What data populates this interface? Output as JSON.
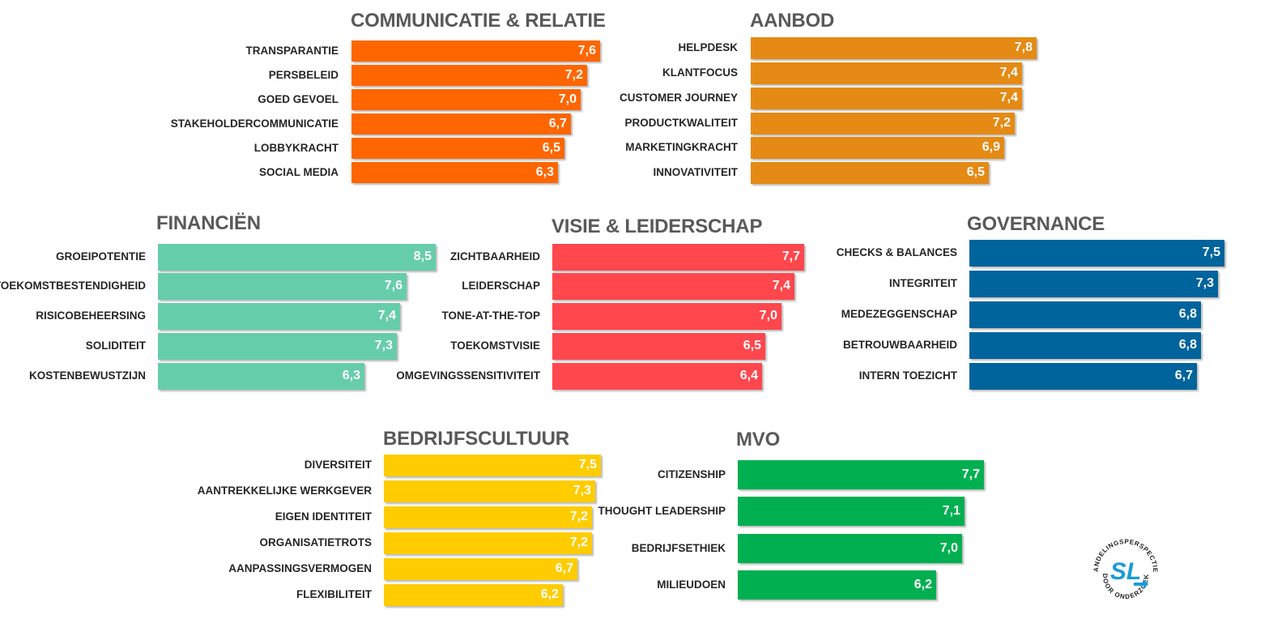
{
  "charts": [
    {
      "title": "COMMUNICATIE & RELATIE",
      "color": "#FF6600",
      "categories": [
        "TRANSPARANTIE",
        "PERSBELEID",
        "GOED GEVOEL",
        "STAKEHOLDERCOMMUNICATIE",
        "LOBBYKRACHT",
        "SOCIAL MEDIA"
      ],
      "values": [
        7.6,
        7.2,
        7.0,
        6.7,
        6.5,
        6.3
      ],
      "labels": [
        "7,6",
        "7,2",
        "7,0",
        "6,7",
        "6,5",
        "6,3"
      ]
    },
    {
      "title": "AANBOD",
      "color": "#E58A14",
      "categories": [
        "HELPDESK",
        "KLANTFOCUS",
        "CUSTOMER JOURNEY",
        "PRODUCTKWALITEIT",
        "MARKETINGKRACHT",
        "INNOVATIVITEIT"
      ],
      "values": [
        7.8,
        7.4,
        7.4,
        7.2,
        6.9,
        6.5
      ],
      "labels": [
        "7,8",
        "7,4",
        "7,4",
        "7,2",
        "6,9",
        "6,5"
      ]
    },
    {
      "title": "FINANCIËN",
      "color": "#66CDAA",
      "categories": [
        "GROEIPOTENTIE",
        "TOEKOMSTBESTENDIGHEID",
        "RISICOBEHEERSING",
        "SOLIDITEIT",
        "KOSTENBEWUSTZIJN"
      ],
      "values": [
        8.5,
        7.6,
        7.4,
        7.3,
        6.3
      ],
      "labels": [
        "8,5",
        "7,6",
        "7,4",
        "7,3",
        "6,3"
      ]
    },
    {
      "title": "VISIE & LEIDERSCHAP",
      "color": "#FF474D",
      "categories": [
        "ZICHTBAARHEID",
        "LEIDERSCHAP",
        "TONE-AT-THE-TOP",
        "TOEKOMSTVISIE",
        "OMGEVINGSSENSITIVITEIT"
      ],
      "values": [
        7.7,
        7.4,
        7.0,
        6.5,
        6.4
      ],
      "labels": [
        "7,7",
        "7,4",
        "7,0",
        "6,5",
        "6,4"
      ]
    },
    {
      "title": "GOVERNANCE",
      "color": "#00649C",
      "categories": [
        "CHECKS & BALANCES",
        "INTEGRITEIT",
        "MEDEZEGGENSCHAP",
        "BETROUWBAARHEID",
        "INTERN TOEZICHT"
      ],
      "values": [
        7.5,
        7.3,
        6.8,
        6.8,
        6.7
      ],
      "labels": [
        "7,5",
        "7,3",
        "6,8",
        "6,8",
        "6,7"
      ]
    },
    {
      "title": "BEDRIJFSCULTUUR",
      "color": "#FFCC00",
      "categories": [
        "DIVERSITEIT",
        "AANTREKKELIJKE WERKGEVER",
        "EIGEN IDENTITEIT",
        "ORGANISATIETROTS",
        "AANPASSINGSVERMOGEN",
        "FLEXIBILITEIT"
      ],
      "values": [
        7.5,
        7.3,
        7.2,
        7.2,
        6.7,
        6.2
      ],
      "labels": [
        "7,5",
        "7,3",
        "7,2",
        "7,2",
        "6,7",
        "6,2"
      ]
    },
    {
      "title": "MVO",
      "color": "#00B050",
      "categories": [
        "CITIZENSHIP",
        "THOUGHT LEADERSHIP",
        "BEDRIJFSETHIEK",
        "MILIEUDOEN"
      ],
      "values": [
        7.7,
        7.1,
        7.0,
        6.2
      ],
      "labels": [
        "7,7",
        "7,1",
        "7,0",
        "6,2"
      ]
    }
  ],
  "logo": {
    "text_top": "HANDELINGSPERSPECTIEF",
    "text_bottom": "DOOR ONDERZOEK",
    "mark": "SL",
    "color": "#1A9BD7"
  }
}
